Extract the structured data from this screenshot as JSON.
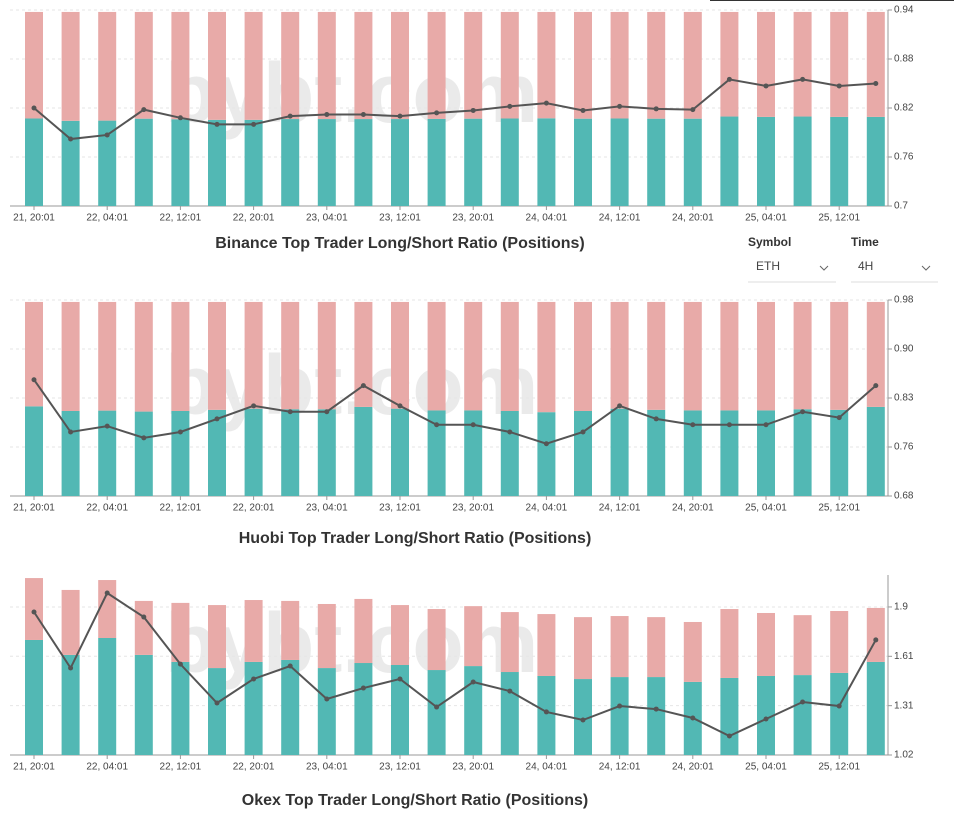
{
  "controls": [
    {
      "label": "Symbol",
      "value": "ETH"
    },
    {
      "label": "Time",
      "value": "4H"
    }
  ],
  "chart_data": [
    {
      "type": "bar-line",
      "title": "Binance Top Trader Long/Short Ratio (Positions)",
      "watermark": "bybt.com",
      "categories": [
        "21, 20:01",
        null,
        "22, 04:01",
        null,
        "22, 12:01",
        null,
        "22, 20:01",
        null,
        "23, 04:01",
        null,
        "23, 12:01",
        null,
        "23, 20:01",
        null,
        "24, 04:01",
        null,
        "24, 12:01",
        null,
        "24, 20:01",
        null,
        "25, 04:01",
        null,
        "25, 12:01",
        null
      ],
      "ylim": [
        0,
        101
      ],
      "y2lim": [
        0.7,
        0.94
      ],
      "y2ticks": [
        0.7,
        0.76,
        0.82,
        0.88,
        0.94
      ],
      "grid": true,
      "series": [
        {
          "color": "#52b8b4",
          "values": [
            45.1,
            43.9,
            44.0,
            45.0,
            44.7,
            44.4,
            44.4,
            44.8,
            44.8,
            44.8,
            44.8,
            44.9,
            45.0,
            45.1,
            45.2,
            45.0,
            45.1,
            45.0,
            45.0,
            46.1,
            45.9,
            46.1,
            45.9,
            45.9
          ]
        },
        {
          "color": "#e8aaa8",
          "values": [
            54.9,
            56.1,
            56.0,
            55.0,
            55.3,
            55.6,
            55.6,
            55.2,
            55.2,
            55.2,
            55.2,
            55.1,
            55.0,
            54.9,
            54.8,
            55.0,
            54.9,
            55.0,
            55.0,
            53.9,
            54.1,
            53.9,
            54.1,
            54.1
          ]
        },
        {
          "color": "#555555",
          "axis": "y2",
          "values": [
            0.82,
            0.782,
            0.787,
            0.818,
            0.808,
            0.8,
            0.8,
            0.81,
            0.812,
            0.812,
            0.81,
            0.814,
            0.817,
            0.822,
            0.826,
            0.817,
            0.822,
            0.819,
            0.818,
            0.855,
            0.847,
            0.855,
            0.847,
            0.85
          ]
        }
      ]
    },
    {
      "type": "bar-line",
      "title": "Huobi Top Trader Long/Short Ratio (Positions)",
      "watermark": "bybt.com",
      "categories": [
        "21, 20:01",
        null,
        "22, 04:01",
        null,
        "22, 12:01",
        null,
        "22, 20:01",
        null,
        "23, 04:01",
        null,
        "23, 12:01",
        null,
        "23, 20:01",
        null,
        "24, 04:01",
        null,
        "24, 12:01",
        null,
        "24, 20:01",
        null,
        "25, 04:01",
        null,
        "25, 12:01",
        null
      ],
      "ylim": [
        0,
        101
      ],
      "y2lim": [
        0.68,
        0.98
      ],
      "y2ticks": [
        0.68,
        {
          "value": 0.755,
          "label": "0.76"
        },
        0.83,
        {
          "value": 0.905,
          "label": "0.90"
        },
        0.98
      ],
      "grid": true,
      "series": [
        {
          "color": "#52b8b4",
          "values": [
            46.2,
            43.8,
            44.0,
            43.5,
            43.8,
            44.4,
            45.0,
            44.7,
            44.7,
            45.9,
            45.0,
            44.1,
            44.1,
            43.8,
            43.2,
            43.8,
            45.0,
            44.4,
            44.1,
            44.1,
            44.1,
            44.7,
            44.4,
            45.9
          ]
        },
        {
          "color": "#e8aaa8",
          "values": [
            53.8,
            56.2,
            56.0,
            56.5,
            56.2,
            55.6,
            55.0,
            55.3,
            55.3,
            54.1,
            55.0,
            55.9,
            55.9,
            56.2,
            56.8,
            56.2,
            55.0,
            55.6,
            55.9,
            55.9,
            55.9,
            55.3,
            55.6,
            54.1
          ]
        },
        {
          "color": "#555555",
          "axis": "y2",
          "values": [
            0.858,
            0.778,
            0.787,
            0.769,
            0.778,
            0.798,
            0.818,
            0.809,
            0.809,
            0.849,
            0.818,
            0.789,
            0.789,
            0.778,
            0.76,
            0.778,
            0.818,
            0.798,
            0.789,
            0.789,
            0.789,
            0.809,
            0.8,
            0.849
          ]
        }
      ]
    },
    {
      "type": "bar-line",
      "title": "Okex Top Trader Long/Short Ratio (Positions)",
      "watermark": "bybt.com",
      "categories": [
        "21, 20:01",
        null,
        "22, 04:01",
        null,
        "22, 12:01",
        null,
        "22, 20:01",
        null,
        "23, 04:01",
        null,
        "23, 12:01",
        null,
        "23, 20:01",
        null,
        "24, 04:01",
        null,
        "24, 12:01",
        null,
        "24, 20:01",
        null,
        "25, 04:01",
        null,
        "25, 12:01",
        null
      ],
      "ylim": [
        0,
        100
      ],
      "y2lim": [
        1.02,
        2.09
      ],
      "y2ticks": [
        1.02,
        {
          "value": 1.3133,
          "label": "1.31"
        },
        {
          "value": 1.6067,
          "label": "1.61"
        },
        1.9
      ],
      "grid": true,
      "series": [
        {
          "color": "#52b8b4",
          "values": [
            63.9,
            55.6,
            65.0,
            55.6,
            51.7,
            48.3,
            51.7,
            52.8,
            48.3,
            51.1,
            50.0,
            47.2,
            49.4,
            46.1,
            43.9,
            42.2,
            43.3,
            43.3,
            40.6,
            42.8,
            43.9,
            44.4,
            45.6,
            51.7
          ]
        },
        {
          "color": "#e8aaa8",
          "values": [
            34.4,
            36.1,
            32.2,
            30.0,
            32.8,
            35.0,
            34.4,
            32.8,
            35.6,
            35.6,
            33.3,
            33.9,
            33.3,
            33.3,
            34.4,
            34.4,
            33.9,
            33.3,
            33.3,
            38.3,
            35.0,
            33.3,
            34.4,
            30.0
          ]
        },
        {
          "color": "#555555",
          "axis": "y2",
          "values": [
            1.87,
            1.537,
            1.983,
            1.84,
            1.56,
            1.329,
            1.472,
            1.549,
            1.353,
            1.418,
            1.472,
            1.305,
            1.454,
            1.4,
            1.276,
            1.228,
            1.311,
            1.293,
            1.24,
            1.133,
            1.234,
            1.335,
            1.311,
            1.704
          ]
        }
      ]
    }
  ]
}
